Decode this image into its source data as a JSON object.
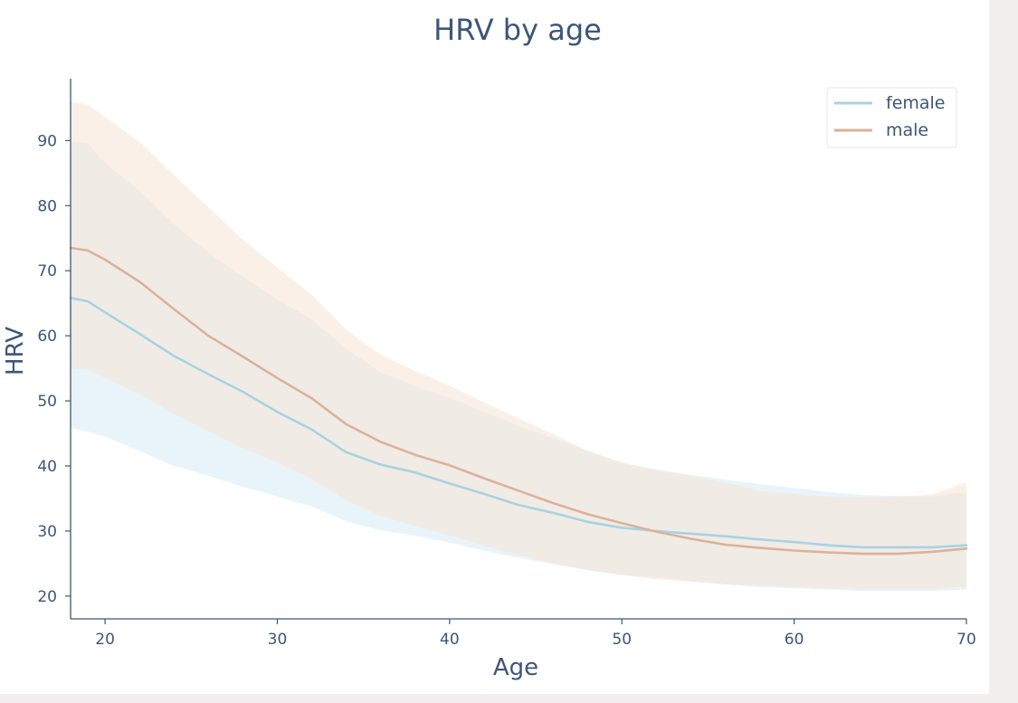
{
  "chart_data": {
    "type": "line",
    "title": "HRV by age",
    "xlabel": "Age",
    "ylabel": "HRV",
    "xlim": [
      18,
      70
    ],
    "ylim": [
      16.5,
      99.5
    ],
    "xticks": [
      20,
      30,
      40,
      50,
      60,
      70
    ],
    "yticks": [
      20,
      30,
      40,
      50,
      60,
      70,
      80,
      90
    ],
    "grid": false,
    "legend_position": "top-right",
    "x": [
      18,
      19,
      20,
      22,
      24,
      26,
      28,
      30,
      32,
      34,
      36,
      38,
      40,
      42,
      44,
      46,
      48,
      50,
      52,
      54,
      56,
      58,
      60,
      62,
      64,
      66,
      68,
      70
    ],
    "series": [
      {
        "name": "female",
        "color": "#a8d3e2",
        "band_color": "#d6ebf6",
        "values": [
          65.8,
          65.3,
          63.6,
          60.3,
          56.9,
          54.1,
          51.4,
          48.3,
          45.6,
          42.1,
          40.2,
          39.0,
          37.3,
          35.7,
          34.0,
          32.8,
          31.4,
          30.5,
          30.0,
          29.6,
          29.2,
          28.7,
          28.3,
          27.8,
          27.5,
          27.5,
          27.5,
          27.8
        ],
        "lower": [
          45.8,
          45.3,
          44.5,
          42.3,
          40.0,
          38.5,
          36.8,
          35.3,
          33.8,
          31.5,
          30.1,
          29.3,
          28.2,
          27.0,
          25.9,
          24.9,
          24.0,
          23.3,
          22.8,
          22.3,
          21.8,
          21.4,
          21.2,
          21.0,
          20.8,
          20.8,
          20.8,
          21.0
        ],
        "upper": [
          89.9,
          89.6,
          86.6,
          82.3,
          77.2,
          72.8,
          69.1,
          65.6,
          62.5,
          58.0,
          54.4,
          52.3,
          50.5,
          48.3,
          46.2,
          44.3,
          42.4,
          40.4,
          39.5,
          38.6,
          37.9,
          37.2,
          36.6,
          36.0,
          35.5,
          35.4,
          35.3,
          36.0
        ]
      },
      {
        "name": "male",
        "color": "#dbb29a",
        "band_color": "#f8e3d6",
        "values": [
          73.5,
          73.1,
          71.7,
          68.3,
          64.1,
          60.0,
          56.8,
          53.5,
          50.4,
          46.4,
          43.7,
          41.7,
          40.1,
          38.1,
          36.2,
          34.3,
          32.6,
          31.2,
          29.9,
          28.8,
          27.9,
          27.4,
          27.0,
          26.7,
          26.5,
          26.5,
          26.8,
          27.3
        ],
        "lower": [
          55.0,
          54.8,
          53.5,
          51.0,
          48.0,
          45.3,
          42.7,
          40.5,
          38.0,
          34.7,
          32.3,
          30.8,
          29.3,
          27.8,
          26.3,
          25.0,
          24.0,
          23.2,
          22.6,
          22.2,
          21.8,
          21.6,
          21.4,
          21.2,
          21.0,
          21.0,
          21.0,
          21.5
        ],
        "upper": [
          96.0,
          95.5,
          93.6,
          89.8,
          84.7,
          79.7,
          74.8,
          70.5,
          66.3,
          60.9,
          57.1,
          54.6,
          52.3,
          49.8,
          47.3,
          44.9,
          42.3,
          40.6,
          39.3,
          38.5,
          37.4,
          36.2,
          35.7,
          35.3,
          35.2,
          35.3,
          35.6,
          37.5
        ]
      }
    ]
  }
}
